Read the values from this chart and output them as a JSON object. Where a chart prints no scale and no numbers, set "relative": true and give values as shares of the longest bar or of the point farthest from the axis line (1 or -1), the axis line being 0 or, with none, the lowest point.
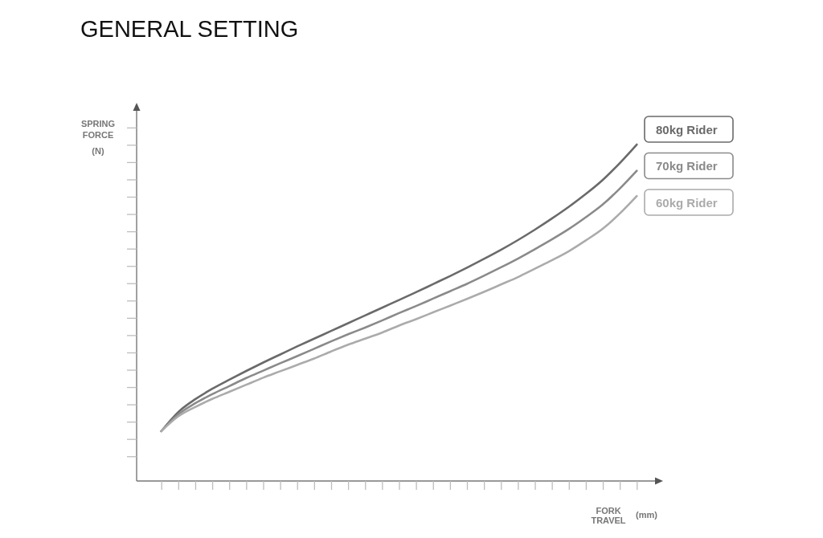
{
  "chart_data": {
    "type": "line",
    "title": "GENERAL SETTING",
    "xlabel": "FORK TRAVEL (mm)",
    "ylabel": "SPRING FORCE (N)",
    "relative": true,
    "legend": "top right",
    "categories": [
      null,
      null,
      null,
      null,
      null,
      null,
      null,
      null,
      null,
      null,
      null,
      null,
      null,
      null,
      null,
      null,
      null,
      null,
      null,
      null,
      null,
      null,
      null,
      null,
      null,
      null,
      null,
      null,
      null
    ],
    "series": [
      {
        "name": "80kg Rider",
        "color": "#6a6a6a",
        "values": [
          0.148,
          0.205,
          0.243,
          0.274,
          0.301,
          0.327,
          0.352,
          0.376,
          0.4,
          0.423,
          0.446,
          0.469,
          0.492,
          0.515,
          0.538,
          0.561,
          0.585,
          0.609,
          0.634,
          0.66,
          0.687,
          0.716,
          0.747,
          0.78,
          0.815,
          0.853,
          0.895,
          0.945,
          1
        ]
      },
      {
        "name": "70kg Rider",
        "color": "#8a8a8a",
        "values": [
          0.148,
          0.198,
          0.231,
          0.258,
          0.282,
          0.306,
          0.328,
          0.35,
          0.371,
          0.393,
          0.415,
          0.436,
          0.456,
          0.477,
          0.499,
          0.52,
          0.542,
          0.564,
          0.586,
          0.61,
          0.635,
          0.661,
          0.689,
          0.718,
          0.749,
          0.784,
          0.822,
          0.869,
          0.922
        ]
      },
      {
        "name": "60kg Rider",
        "color": "#ababab",
        "values": [
          0.148,
          0.192,
          0.22,
          0.244,
          0.265,
          0.286,
          0.307,
          0.326,
          0.345,
          0.364,
          0.385,
          0.405,
          0.423,
          0.441,
          0.462,
          0.481,
          0.501,
          0.521,
          0.541,
          0.562,
          0.584,
          0.606,
          0.631,
          0.656,
          0.683,
          0.715,
          0.75,
          0.795,
          0.847
        ]
      }
    ]
  }
}
